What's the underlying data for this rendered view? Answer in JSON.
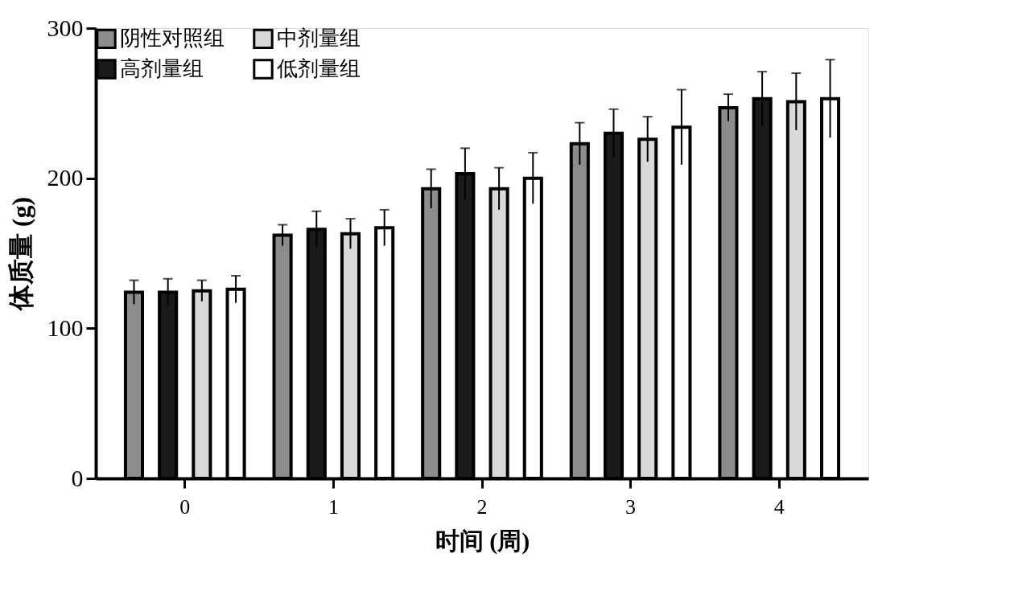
{
  "chart_data": {
    "type": "bar",
    "xlabel": "时间 (周)",
    "ylabel": "体质量 (g)",
    "categories": [
      "0",
      "1",
      "2",
      "3",
      "4"
    ],
    "series": [
      {
        "name": "阴性对照组",
        "color": "#8c8c8c",
        "values": [
          124,
          162,
          193,
          223,
          247
        ],
        "errors": [
          8,
          7,
          13,
          14,
          9
        ]
      },
      {
        "name": "高剂量组",
        "color": "#1a1a1a",
        "values": [
          124,
          166,
          203,
          230,
          253
        ],
        "errors": [
          9,
          12,
          17,
          16,
          18
        ]
      },
      {
        "name": "中剂量组",
        "color": "#d9d9d9",
        "values": [
          125,
          163,
          193,
          226,
          251
        ],
        "errors": [
          7,
          10,
          14,
          15,
          19
        ]
      },
      {
        "name": "低剂量组",
        "color": "#ffffff",
        "values": [
          126,
          167,
          200,
          234,
          253
        ],
        "errors": [
          9,
          12,
          17,
          25,
          26
        ]
      }
    ],
    "ylim": [
      0,
      300
    ],
    "yticks": [
      0,
      100,
      200,
      300
    ],
    "grid": false,
    "legend": "top left"
  }
}
